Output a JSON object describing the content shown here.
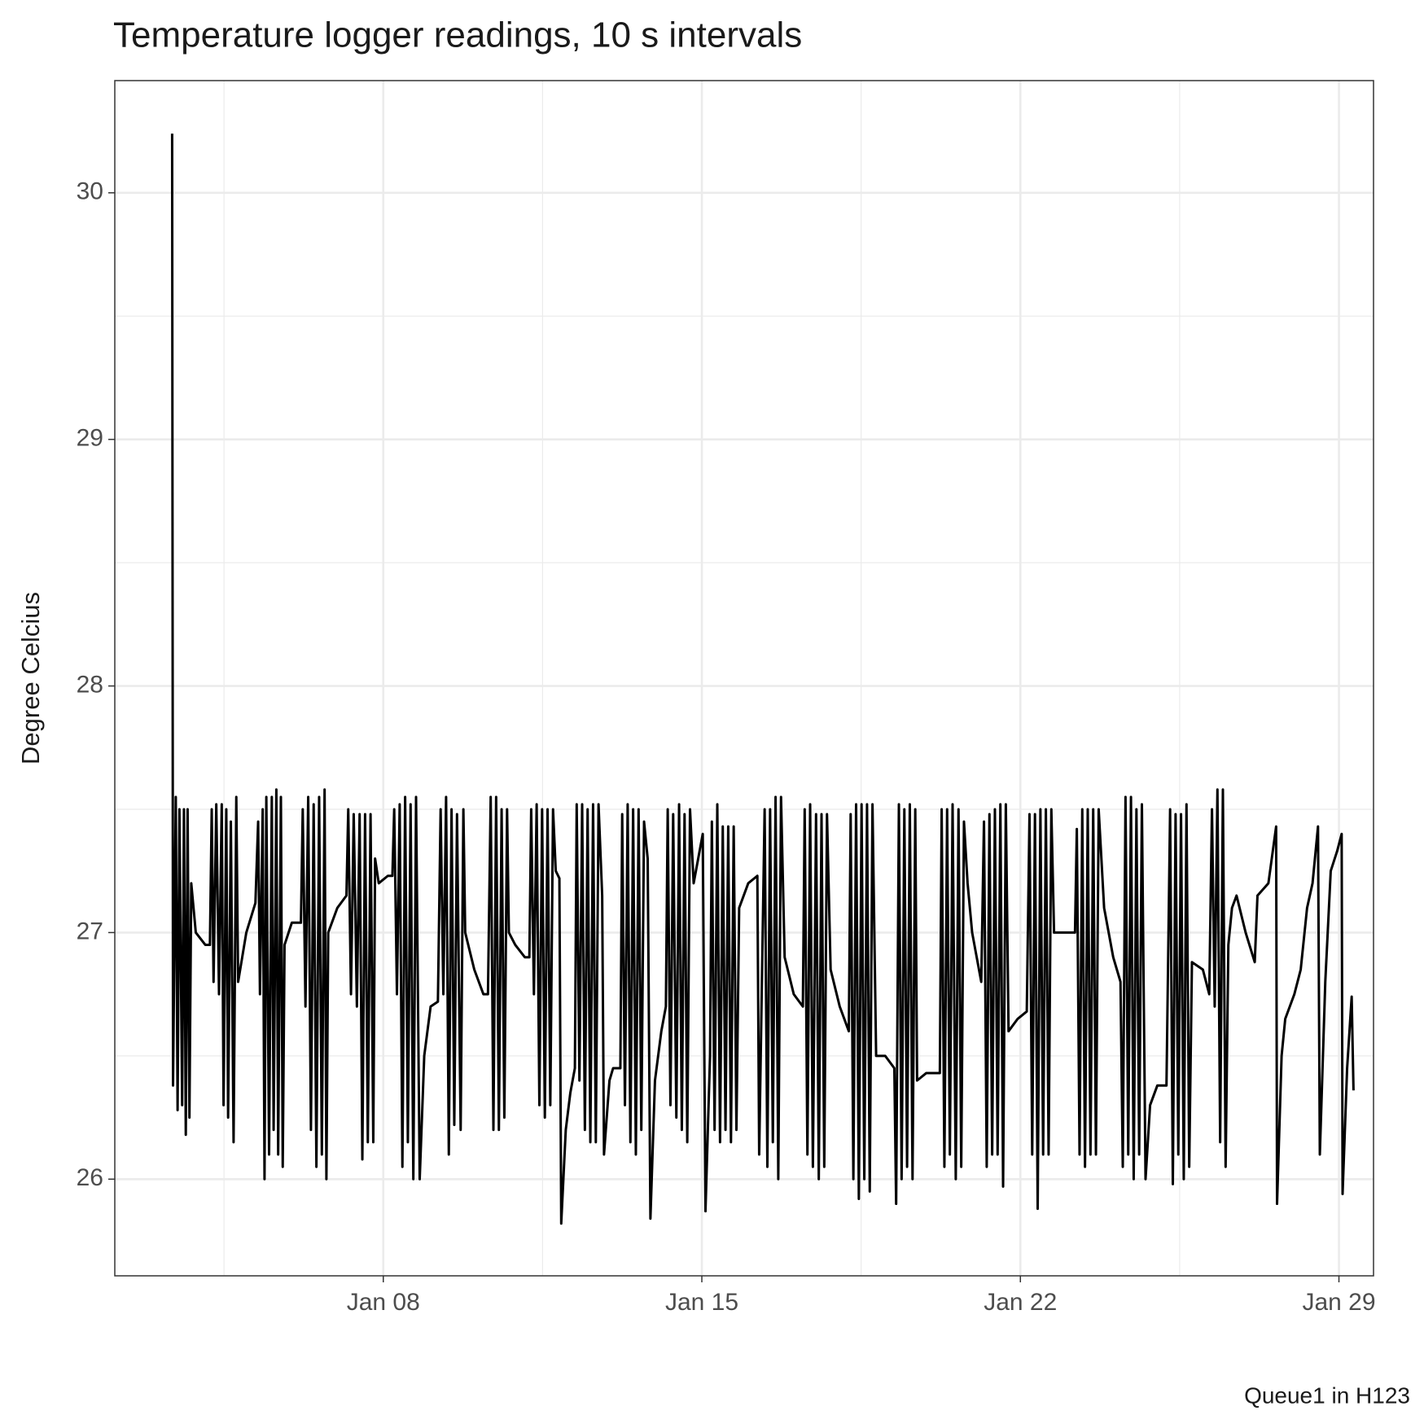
{
  "chart_data": {
    "type": "line",
    "title": "Temperature logger readings, 10 s intervals",
    "ylabel": "Degree Celcius",
    "caption": "Queue1 in H123",
    "color": "#000000",
    "grid": true,
    "xlim": [
      2.1,
      29.76
    ],
    "ylim": [
      25.608,
      30.455
    ],
    "xticks": [
      {
        "value": 8,
        "label": "Jan 08"
      },
      {
        "value": 15,
        "label": "Jan 15"
      },
      {
        "value": 22,
        "label": "Jan 22"
      },
      {
        "value": 29,
        "label": "Jan 29"
      }
    ],
    "xminor": [
      4.5,
      11.5,
      18.5,
      25.5
    ],
    "yticks": [
      26,
      27,
      28,
      29,
      30
    ],
    "yminor": [
      26.5,
      27.5,
      28.5,
      29.5
    ],
    "x": [
      3.36,
      3.38,
      3.44,
      3.48,
      3.52,
      3.58,
      3.62,
      3.66,
      3.7,
      3.74,
      3.78,
      3.88,
      4.09,
      4.19,
      4.23,
      4.27,
      4.33,
      4.39,
      4.45,
      4.49,
      4.55,
      4.59,
      4.65,
      4.71,
      4.77,
      4.81,
      4.99,
      5.19,
      5.25,
      5.29,
      5.35,
      5.39,
      5.43,
      5.49,
      5.55,
      5.59,
      5.65,
      5.69,
      5.75,
      5.79,
      5.83,
      5.99,
      6.19,
      6.23,
      6.29,
      6.35,
      6.41,
      6.47,
      6.53,
      6.59,
      6.65,
      6.71,
      6.75,
      6.79,
      6.99,
      7.19,
      7.23,
      7.29,
      7.35,
      7.42,
      7.48,
      7.54,
      7.6,
      7.66,
      7.72,
      7.78,
      7.82,
      7.9,
      8.1,
      8.2,
      8.24,
      8.3,
      8.36,
      8.42,
      8.48,
      8.54,
      8.6,
      8.66,
      8.72,
      8.8,
      8.9,
      9.04,
      9.2,
      9.26,
      9.32,
      9.38,
      9.44,
      9.5,
      9.56,
      9.62,
      9.7,
      9.76,
      9.8,
      10.0,
      10.2,
      10.3,
      10.36,
      10.42,
      10.48,
      10.54,
      10.6,
      10.66,
      10.72,
      10.76,
      10.9,
      11.11,
      11.21,
      11.25,
      11.31,
      11.37,
      11.43,
      11.49,
      11.55,
      11.61,
      11.67,
      11.73,
      11.79,
      11.87,
      11.91,
      12.01,
      12.11,
      12.21,
      12.25,
      12.31,
      12.37,
      12.43,
      12.49,
      12.55,
      12.61,
      12.67,
      12.73,
      12.81,
      12.85,
      12.97,
      13.05,
      13.21,
      13.25,
      13.31,
      13.37,
      13.43,
      13.49,
      13.55,
      13.61,
      13.67,
      13.73,
      13.81,
      13.87,
      13.97,
      14.11,
      14.21,
      14.25,
      14.31,
      14.37,
      14.44,
      14.5,
      14.56,
      14.62,
      14.68,
      14.74,
      14.82,
      15.02,
      15.08,
      15.18,
      15.22,
      15.28,
      15.34,
      15.4,
      15.46,
      15.52,
      15.58,
      15.64,
      15.7,
      15.76,
      15.82,
      16.02,
      16.22,
      16.26,
      16.38,
      16.44,
      16.5,
      16.56,
      16.62,
      16.68,
      16.74,
      16.82,
      17.02,
      17.22,
      17.26,
      17.32,
      17.38,
      17.44,
      17.51,
      17.57,
      17.63,
      17.69,
      17.75,
      17.83,
      18.03,
      18.23,
      18.27,
      18.33,
      18.39,
      18.45,
      18.51,
      18.57,
      18.63,
      18.69,
      18.75,
      18.83,
      19.03,
      19.23,
      19.27,
      19.33,
      19.39,
      19.45,
      19.51,
      19.57,
      19.63,
      19.69,
      19.73,
      19.93,
      20.23,
      20.27,
      20.33,
      20.39,
      20.45,
      20.51,
      20.58,
      20.64,
      20.7,
      20.76,
      20.84,
      20.94,
      21.14,
      21.2,
      21.26,
      21.32,
      21.38,
      21.44,
      21.5,
      21.56,
      21.62,
      21.68,
      21.74,
      21.94,
      22.14,
      22.2,
      22.26,
      22.32,
      22.38,
      22.44,
      22.5,
      22.56,
      22.62,
      22.68,
      22.74,
      22.94,
      23.2,
      23.24,
      23.3,
      23.36,
      23.42,
      23.48,
      23.54,
      23.6,
      23.66,
      23.72,
      23.84,
      24.04,
      24.2,
      24.25,
      24.31,
      24.37,
      24.43,
      24.49,
      24.55,
      24.61,
      24.67,
      24.75,
      24.85,
      25.01,
      25.21,
      25.29,
      25.35,
      25.41,
      25.47,
      25.53,
      25.59,
      25.65,
      25.71,
      25.77,
      26.01,
      26.15,
      26.21,
      26.27,
      26.33,
      26.39,
      26.45,
      26.51,
      26.57,
      26.65,
      26.75,
      26.95,
      27.15,
      27.21,
      27.45,
      27.62,
      27.64,
      27.74,
      27.82,
      28.02,
      28.16,
      28.3,
      28.42,
      28.54,
      28.58,
      28.7,
      28.82,
      28.96,
      29.06,
      29.08,
      29.18,
      29.28,
      29.32
    ],
    "values": [
      30.24,
      26.38,
      27.55,
      26.28,
      27.5,
      26.3,
      27.5,
      26.18,
      27.5,
      26.25,
      27.2,
      27.0,
      26.95,
      26.95,
      27.5,
      26.8,
      27.52,
      26.75,
      27.52,
      26.3,
      27.5,
      26.25,
      27.45,
      26.15,
      27.55,
      26.8,
      27.0,
      27.12,
      27.45,
      26.75,
      27.5,
      26.0,
      27.55,
      26.1,
      27.55,
      26.2,
      27.58,
      26.1,
      27.55,
      26.05,
      26.95,
      27.04,
      27.04,
      27.5,
      26.7,
      27.55,
      26.2,
      27.52,
      26.05,
      27.55,
      26.1,
      27.58,
      26.0,
      27.0,
      27.1,
      27.15,
      27.5,
      26.75,
      27.48,
      26.7,
      27.48,
      26.08,
      27.48,
      26.15,
      27.48,
      26.15,
      27.3,
      27.2,
      27.23,
      27.23,
      27.5,
      26.75,
      27.52,
      26.05,
      27.55,
      26.15,
      27.52,
      26.0,
      27.55,
      26.0,
      26.5,
      26.7,
      26.72,
      27.5,
      26.75,
      27.55,
      26.1,
      27.5,
      26.22,
      27.48,
      26.2,
      27.5,
      27.0,
      26.85,
      26.75,
      26.75,
      27.55,
      26.2,
      27.55,
      26.2,
      27.5,
      26.25,
      27.5,
      27.0,
      26.95,
      26.9,
      26.9,
      27.5,
      26.75,
      27.52,
      26.3,
      27.5,
      26.25,
      27.5,
      26.3,
      27.5,
      27.25,
      27.22,
      25.82,
      26.2,
      26.35,
      26.45,
      27.52,
      26.4,
      27.52,
      26.2,
      27.5,
      26.15,
      27.52,
      26.15,
      27.52,
      27.15,
      26.1,
      26.4,
      26.45,
      26.45,
      27.48,
      26.3,
      27.52,
      26.15,
      27.5,
      26.1,
      27.5,
      26.2,
      27.45,
      27.3,
      25.84,
      26.4,
      26.6,
      26.7,
      27.5,
      26.3,
      27.48,
      26.25,
      27.52,
      26.2,
      27.48,
      26.15,
      27.5,
      27.2,
      27.4,
      25.87,
      26.5,
      27.45,
      26.2,
      27.52,
      26.15,
      27.43,
      26.2,
      27.43,
      26.15,
      27.43,
      26.2,
      27.1,
      27.2,
      27.23,
      26.1,
      27.5,
      26.05,
      27.5,
      26.15,
      27.55,
      26.0,
      27.55,
      26.9,
      26.75,
      26.7,
      27.5,
      26.1,
      27.52,
      26.05,
      27.48,
      26.0,
      27.48,
      26.05,
      27.48,
      26.85,
      26.7,
      26.6,
      27.48,
      26.0,
      27.52,
      25.92,
      27.52,
      26.0,
      27.52,
      25.95,
      27.52,
      26.5,
      26.5,
      26.45,
      25.9,
      27.52,
      26.0,
      27.5,
      26.05,
      27.52,
      26.0,
      27.5,
      26.4,
      26.43,
      26.43,
      27.5,
      26.05,
      27.5,
      26.1,
      27.52,
      26.0,
      27.5,
      26.05,
      27.45,
      27.2,
      27.0,
      26.8,
      27.45,
      26.05,
      27.48,
      26.1,
      27.5,
      26.1,
      27.52,
      25.97,
      27.52,
      26.6,
      26.65,
      26.68,
      27.48,
      26.1,
      27.48,
      25.88,
      27.5,
      26.1,
      27.5,
      26.1,
      27.5,
      27.0,
      27.0,
      27.0,
      27.42,
      26.1,
      27.5,
      26.05,
      27.5,
      26.1,
      27.5,
      26.1,
      27.5,
      27.1,
      26.9,
      26.8,
      26.05,
      27.55,
      26.1,
      27.55,
      26.0,
      27.5,
      26.1,
      27.52,
      26.0,
      26.3,
      26.38,
      26.38,
      27.5,
      25.98,
      27.48,
      26.1,
      27.48,
      26.0,
      27.52,
      26.05,
      26.88,
      26.85,
      26.75,
      27.5,
      26.7,
      27.58,
      26.15,
      27.58,
      26.05,
      26.95,
      27.1,
      27.15,
      27.0,
      26.88,
      27.15,
      27.2,
      27.43,
      25.9,
      26.5,
      26.65,
      26.75,
      26.85,
      27.1,
      27.2,
      27.43,
      26.1,
      26.8,
      27.25,
      27.33,
      27.4,
      25.94,
      26.45,
      26.74,
      26.36
    ]
  }
}
